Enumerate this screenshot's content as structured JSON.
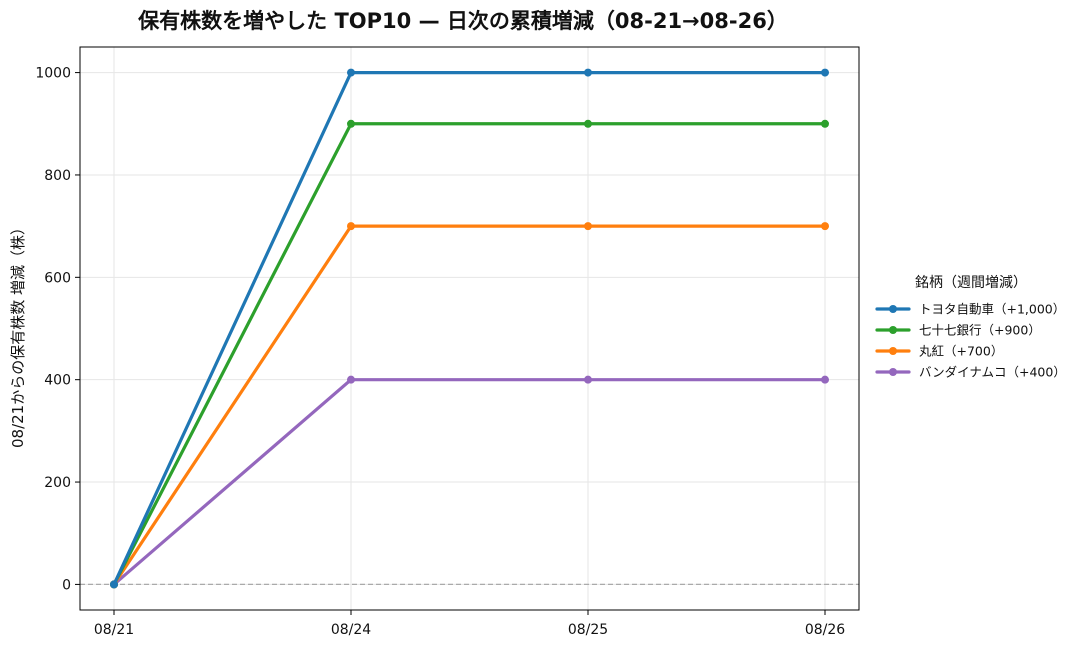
{
  "chart_data": {
    "type": "line",
    "title": "保有株数を増やした TOP10 — 日次の累積増減（08-21→08-26）",
    "xlabel": "",
    "ylabel": "08/21からの保有株数 増減（株）",
    "categories": [
      "08/21",
      "08/24",
      "08/25",
      "08/26"
    ],
    "ylim": [
      -50,
      1050
    ],
    "yticks": [
      0,
      200,
      400,
      600,
      800,
      1000
    ],
    "grid": true,
    "zero_line": true,
    "legend": {
      "title": "銘柄（週間増減）",
      "placement": "right-outside"
    },
    "series": [
      {
        "name": "トヨタ自動車（+1,000）",
        "color": "#1f77b4",
        "values": [
          0,
          1000,
          1000,
          1000
        ]
      },
      {
        "name": "七十七銀行（+900）",
        "color": "#2ca02c",
        "values": [
          0,
          900,
          900,
          900
        ]
      },
      {
        "name": "丸紅（+700）",
        "color": "#ff7f0e",
        "values": [
          0,
          700,
          700,
          700
        ]
      },
      {
        "name": "バンダイナムコ（+400）",
        "color": "#9467bd",
        "values": [
          0,
          400,
          400,
          400
        ]
      }
    ]
  }
}
